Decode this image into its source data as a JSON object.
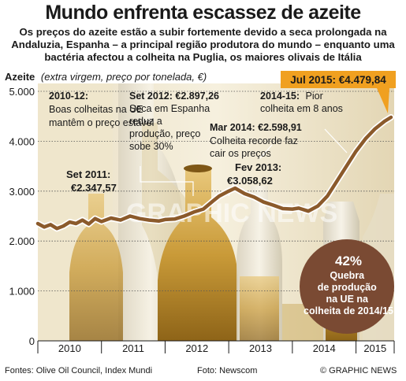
{
  "header": {
    "title": "Mundo enfrenta escassez de azeite",
    "subtitle": "Os preços do azeite estão a subir fortemente devido a seca prolongada na Andaluzia, Espanha – a principal região produtora do mundo – enquanto uma bactéria afectou a colheita na Puglia, os maiores olivais de Itália"
  },
  "chart_data": {
    "type": "line",
    "title": "",
    "ylabel": "Azeite",
    "ylabel_note": "(extra virgem, preço por tonelada, €)",
    "ylim": [
      0,
      5000
    ],
    "yticks": [
      0,
      1000,
      2000,
      3000,
      4000,
      5000
    ],
    "ytick_labels": [
      "0",
      "1.000",
      "2.000",
      "3.000",
      "4.000",
      "5.000"
    ],
    "xlim": [
      2010.0,
      2015.6
    ],
    "xticks": [
      2010,
      2011,
      2012,
      2013,
      2014,
      2015
    ],
    "xtick_labels": [
      "2010",
      "2011",
      "2012",
      "2013",
      "2014",
      "2015"
    ],
    "series": [
      {
        "color": "#8b5a2b",
        "x": [
          2010.0,
          2010.1,
          2010.2,
          2010.3,
          2010.4,
          2010.5,
          2010.6,
          2010.7,
          2010.8,
          2010.9,
          2011.0,
          2011.15,
          2011.3,
          2011.45,
          2011.6,
          2011.75,
          2011.9,
          2012.0,
          2012.15,
          2012.3,
          2012.45,
          2012.6,
          2012.75,
          2012.85,
          2013.0,
          2013.1,
          2013.25,
          2013.4,
          2013.55,
          2013.7,
          2013.85,
          2014.0,
          2014.1,
          2014.25,
          2014.4,
          2014.55,
          2014.7,
          2014.85,
          2015.0,
          2015.15,
          2015.3,
          2015.45,
          2015.55
        ],
        "y": [
          2350,
          2280,
          2330,
          2250,
          2300,
          2380,
          2350,
          2420,
          2340,
          2450,
          2390,
          2460,
          2420,
          2500,
          2450,
          2420,
          2400,
          2430,
          2440,
          2500,
          2580,
          2640,
          2800,
          2900,
          3000,
          3060,
          2950,
          2880,
          2780,
          2720,
          2650,
          2640,
          2660,
          2600,
          2700,
          2900,
          3200,
          3500,
          3800,
          4050,
          4250,
          4400,
          4480
        ]
      }
    ],
    "annotations": [
      {
        "label": "2010-12:",
        "text": "Boas colheitas na UE mantêm o preço estável"
      },
      {
        "label": "Set 2011:",
        "text": "€2.347,57"
      },
      {
        "label": "Set 2012: €2.897,26",
        "text": "Seca em Espanha reduz a produção, preço sobe 30%"
      },
      {
        "label": "Mar 2014: €2.598,91",
        "text": "Colheita recorde faz cair os preços"
      },
      {
        "label": "Fev 2013:",
        "text": "€3.058,62"
      },
      {
        "label": "2014-15:",
        "text": "Pior colheita em 8 anos"
      },
      {
        "label": "Jul 2015: €4.479,84",
        "text": ""
      }
    ],
    "callout": {
      "value": "42%",
      "text": "Quebra de produção na UE na colheita de 2014/15"
    }
  },
  "watermark": "GRAPHIC NEWS",
  "footer": {
    "sources": "Fontes: Olive Oil Council, Index Mundi",
    "photo": "Foto: Newscom",
    "credit": "© GRAPHIC NEWS"
  },
  "colors": {
    "line": "#8b5a2b",
    "line_outline": "#ffffff",
    "badge": "#f0a020",
    "callout_bg": "#7a4a33",
    "grid": "#555555",
    "photo_light": "#f3ead2",
    "photo_oil": "#b98a2f"
  }
}
